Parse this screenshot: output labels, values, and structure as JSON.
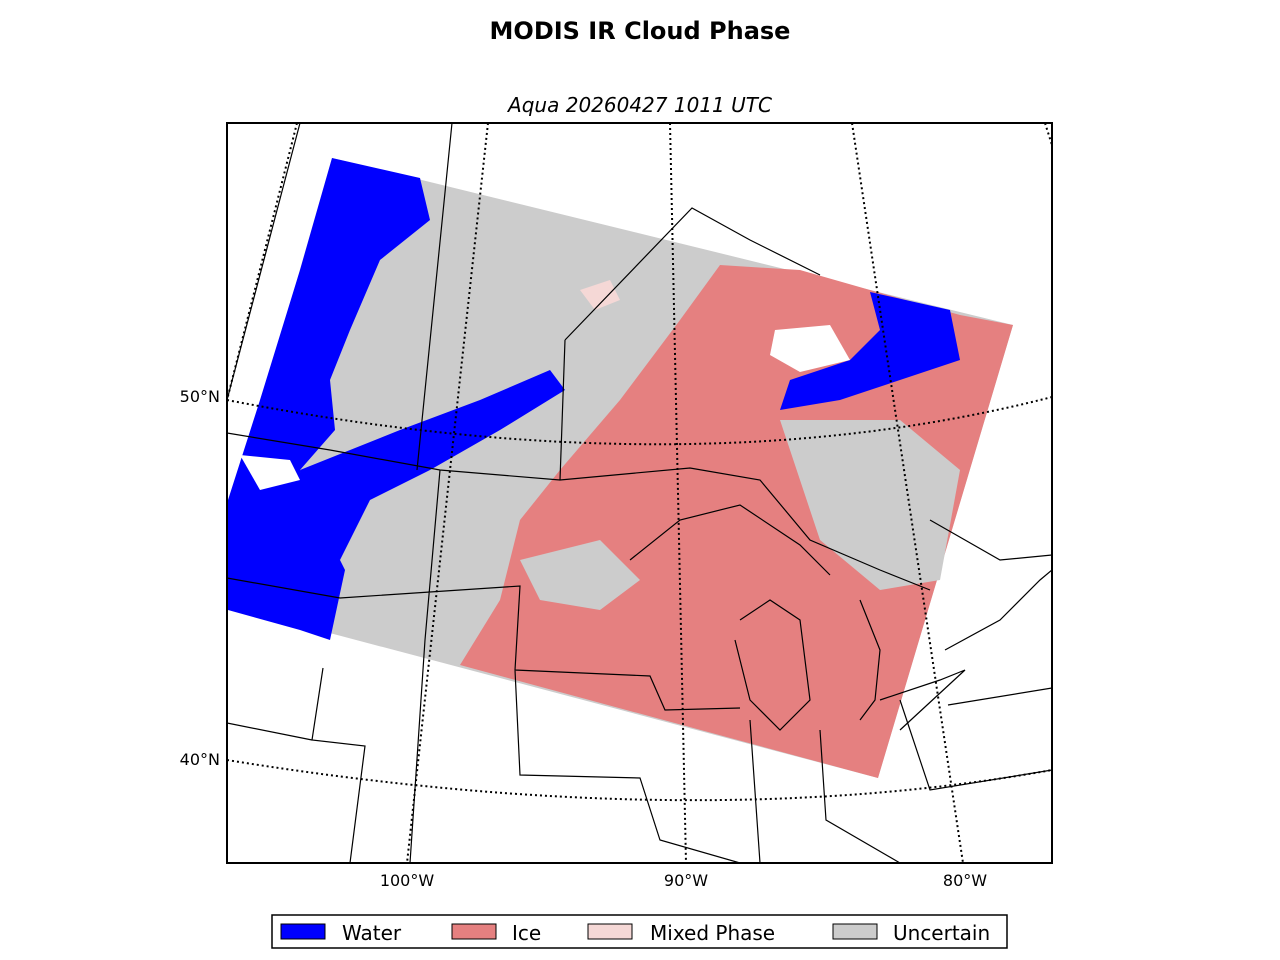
{
  "title": "MODIS IR Cloud Phase",
  "subtitle": "Aqua 20260427 1011 UTC",
  "map": {
    "lat_labels": [
      "50°N",
      "40°N"
    ],
    "lon_labels": [
      "100°W",
      "90°W",
      "80°W"
    ]
  },
  "legend": [
    {
      "label": "Water",
      "color": "#0000ff"
    },
    {
      "label": "Ice",
      "color": "#e58080"
    },
    {
      "label": "Mixed Phase",
      "color": "#f5d8d6"
    },
    {
      "label": "Uncertain",
      "color": "#cccccc"
    }
  ]
}
